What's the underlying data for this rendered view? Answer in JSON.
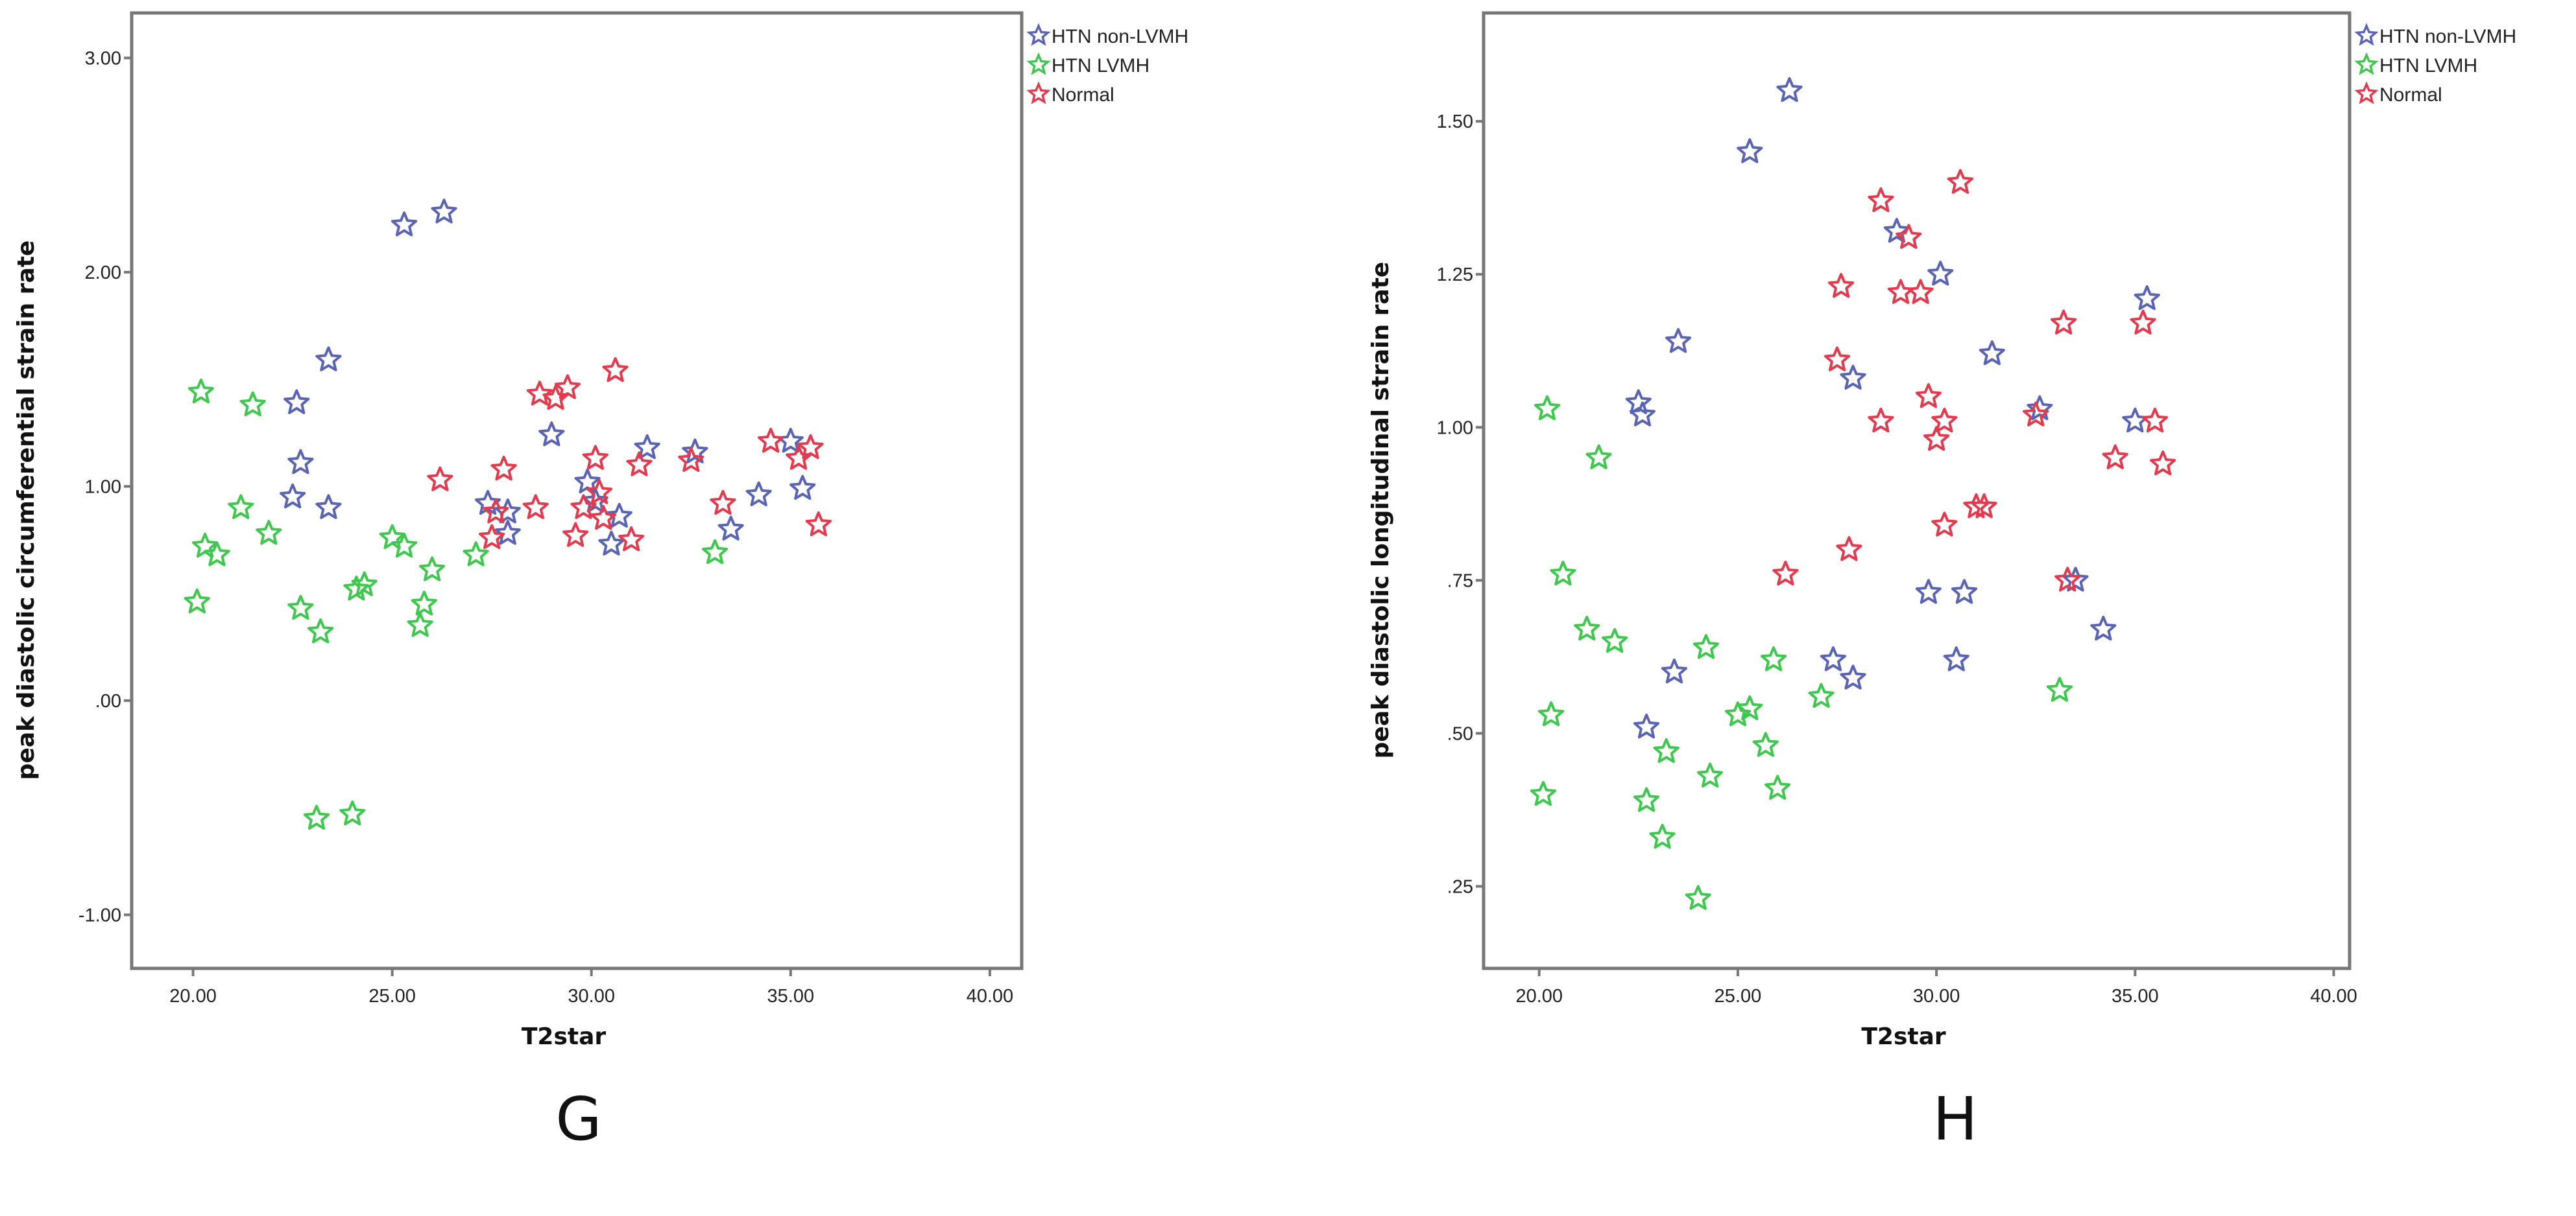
{
  "colors": {
    "HTN non-LVMH": "#5a64b4",
    "HTN LVMH": "#3ec84e",
    "Normal": "#e33a4e"
  },
  "marker": "star-outline",
  "chart_data": [
    {
      "type": "scatter",
      "panel_label": "G",
      "xlabel": "T2star",
      "ylabel": "peak diastolic circumferential strain rate",
      "xlim": [
        18.46,
        40.8
      ],
      "ylim": [
        -1.25,
        3.21
      ],
      "xticks": [
        20,
        25,
        30,
        35,
        40
      ],
      "xtick_labels": [
        "20.00",
        "25.00",
        "30.00",
        "35.00",
        "40.00"
      ],
      "yticks": [
        3,
        2,
        1,
        0,
        -1
      ],
      "ytick_labels": [
        "3.00",
        "2.00",
        "1.00",
        ".00",
        "-1.00"
      ],
      "grid": false,
      "legend_position": "outside-top-right",
      "series": [
        {
          "name": "HTN non-LVMH",
          "points": [
            [
              25.3,
              2.22
            ],
            [
              26.3,
              2.28
            ],
            [
              23.4,
              1.59
            ],
            [
              22.6,
              1.39
            ],
            [
              22.7,
              1.11
            ],
            [
              22.5,
              0.95
            ],
            [
              23.4,
              0.9
            ],
            [
              29.0,
              1.24
            ],
            [
              27.4,
              0.92
            ],
            [
              27.9,
              0.88
            ],
            [
              27.9,
              0.78
            ],
            [
              29.9,
              1.02
            ],
            [
              30.1,
              0.93
            ],
            [
              30.7,
              0.86
            ],
            [
              30.5,
              0.73
            ],
            [
              31.4,
              1.18
            ],
            [
              32.6,
              1.16
            ],
            [
              35.0,
              1.21
            ],
            [
              35.3,
              0.99
            ],
            [
              34.2,
              0.96
            ],
            [
              33.5,
              0.8
            ]
          ]
        },
        {
          "name": "HTN LVMH",
          "points": [
            [
              20.2,
              1.44
            ],
            [
              21.5,
              1.38
            ],
            [
              21.2,
              0.9
            ],
            [
              21.9,
              0.78
            ],
            [
              20.3,
              0.72
            ],
            [
              20.6,
              0.68
            ],
            [
              20.1,
              0.46
            ],
            [
              22.7,
              0.43
            ],
            [
              23.2,
              0.32
            ],
            [
              25.0,
              0.76
            ],
            [
              25.3,
              0.72
            ],
            [
              24.3,
              0.54
            ],
            [
              24.1,
              0.52
            ],
            [
              26.0,
              0.61
            ],
            [
              25.8,
              0.45
            ],
            [
              25.7,
              0.35
            ],
            [
              27.1,
              0.68
            ],
            [
              33.1,
              0.69
            ],
            [
              23.1,
              -0.55
            ],
            [
              24.0,
              -0.53
            ]
          ]
        },
        {
          "name": "Normal",
          "points": [
            [
              26.2,
              1.03
            ],
            [
              27.8,
              1.08
            ],
            [
              27.5,
              0.76
            ],
            [
              27.6,
              0.88
            ],
            [
              28.6,
              0.9
            ],
            [
              28.7,
              1.43
            ],
            [
              29.4,
              1.46
            ],
            [
              29.1,
              1.41
            ],
            [
              30.6,
              1.54
            ],
            [
              30.1,
              1.13
            ],
            [
              29.8,
              0.9
            ],
            [
              29.6,
              0.77
            ],
            [
              30.2,
              0.97
            ],
            [
              30.3,
              0.85
            ],
            [
              31.0,
              0.75
            ],
            [
              31.2,
              1.1
            ],
            [
              32.5,
              1.12
            ],
            [
              33.3,
              0.92
            ],
            [
              34.5,
              1.21
            ],
            [
              35.2,
              1.13
            ],
            [
              35.5,
              1.18
            ],
            [
              35.7,
              0.82
            ]
          ]
        }
      ]
    },
    {
      "type": "scatter",
      "panel_label": "H",
      "xlabel": "T2star",
      "ylabel": "peak diastolic longitudinal strain rate",
      "xlim": [
        18.6,
        40.4
      ],
      "ylim": [
        0.116,
        1.677
      ],
      "xticks": [
        20,
        25,
        30,
        35,
        40
      ],
      "xtick_labels": [
        "20.00",
        "25.00",
        "30.00",
        "35.00",
        "40.00"
      ],
      "yticks": [
        1.5,
        1.25,
        1.0,
        0.75,
        0.5,
        0.25
      ],
      "ytick_labels": [
        "1.50",
        "1.25",
        "1.00",
        ".75",
        ".50",
        ".25"
      ],
      "grid": false,
      "legend_position": "outside-top-right",
      "series": [
        {
          "name": "HTN non-LVMH",
          "points": [
            [
              25.3,
              1.45
            ],
            [
              26.3,
              1.55
            ],
            [
              23.5,
              1.14
            ],
            [
              22.5,
              1.04
            ],
            [
              22.6,
              1.02
            ],
            [
              29.0,
              1.32
            ],
            [
              30.1,
              1.25
            ],
            [
              27.9,
              1.08
            ],
            [
              31.4,
              1.12
            ],
            [
              32.6,
              1.03
            ],
            [
              35.3,
              1.21
            ],
            [
              35.0,
              1.01
            ],
            [
              29.8,
              0.73
            ],
            [
              30.7,
              0.73
            ],
            [
              33.5,
              0.75
            ],
            [
              34.2,
              0.67
            ],
            [
              30.5,
              0.62
            ],
            [
              27.4,
              0.62
            ],
            [
              27.9,
              0.59
            ],
            [
              23.4,
              0.6
            ],
            [
              22.7,
              0.51
            ]
          ]
        },
        {
          "name": "HTN LVMH",
          "points": [
            [
              20.2,
              1.03
            ],
            [
              21.5,
              0.95
            ],
            [
              20.6,
              0.76
            ],
            [
              21.2,
              0.67
            ],
            [
              21.9,
              0.65
            ],
            [
              20.3,
              0.53
            ],
            [
              20.1,
              0.4
            ],
            [
              22.7,
              0.39
            ],
            [
              23.2,
              0.47
            ],
            [
              23.1,
              0.33
            ],
            [
              24.2,
              0.64
            ],
            [
              24.3,
              0.43
            ],
            [
              25.0,
              0.53
            ],
            [
              25.3,
              0.54
            ],
            [
              25.7,
              0.48
            ],
            [
              26.0,
              0.41
            ],
            [
              25.9,
              0.62
            ],
            [
              27.1,
              0.56
            ],
            [
              24.0,
              0.23
            ],
            [
              33.1,
              0.57
            ]
          ]
        },
        {
          "name": "Normal",
          "points": [
            [
              28.6,
              1.37
            ],
            [
              30.6,
              1.4
            ],
            [
              29.3,
              1.31
            ],
            [
              27.6,
              1.23
            ],
            [
              29.1,
              1.22
            ],
            [
              29.6,
              1.22
            ],
            [
              27.5,
              1.11
            ],
            [
              28.6,
              1.01
            ],
            [
              29.8,
              1.05
            ],
            [
              30.2,
              1.01
            ],
            [
              30.0,
              0.98
            ],
            [
              30.2,
              0.84
            ],
            [
              31.0,
              0.87
            ],
            [
              31.2,
              0.87
            ],
            [
              26.2,
              0.76
            ],
            [
              27.8,
              0.8
            ],
            [
              32.5,
              1.02
            ],
            [
              33.2,
              1.17
            ],
            [
              35.2,
              1.17
            ],
            [
              35.5,
              1.01
            ],
            [
              34.5,
              0.95
            ],
            [
              35.7,
              0.94
            ],
            [
              33.3,
              0.75
            ]
          ]
        }
      ]
    }
  ]
}
